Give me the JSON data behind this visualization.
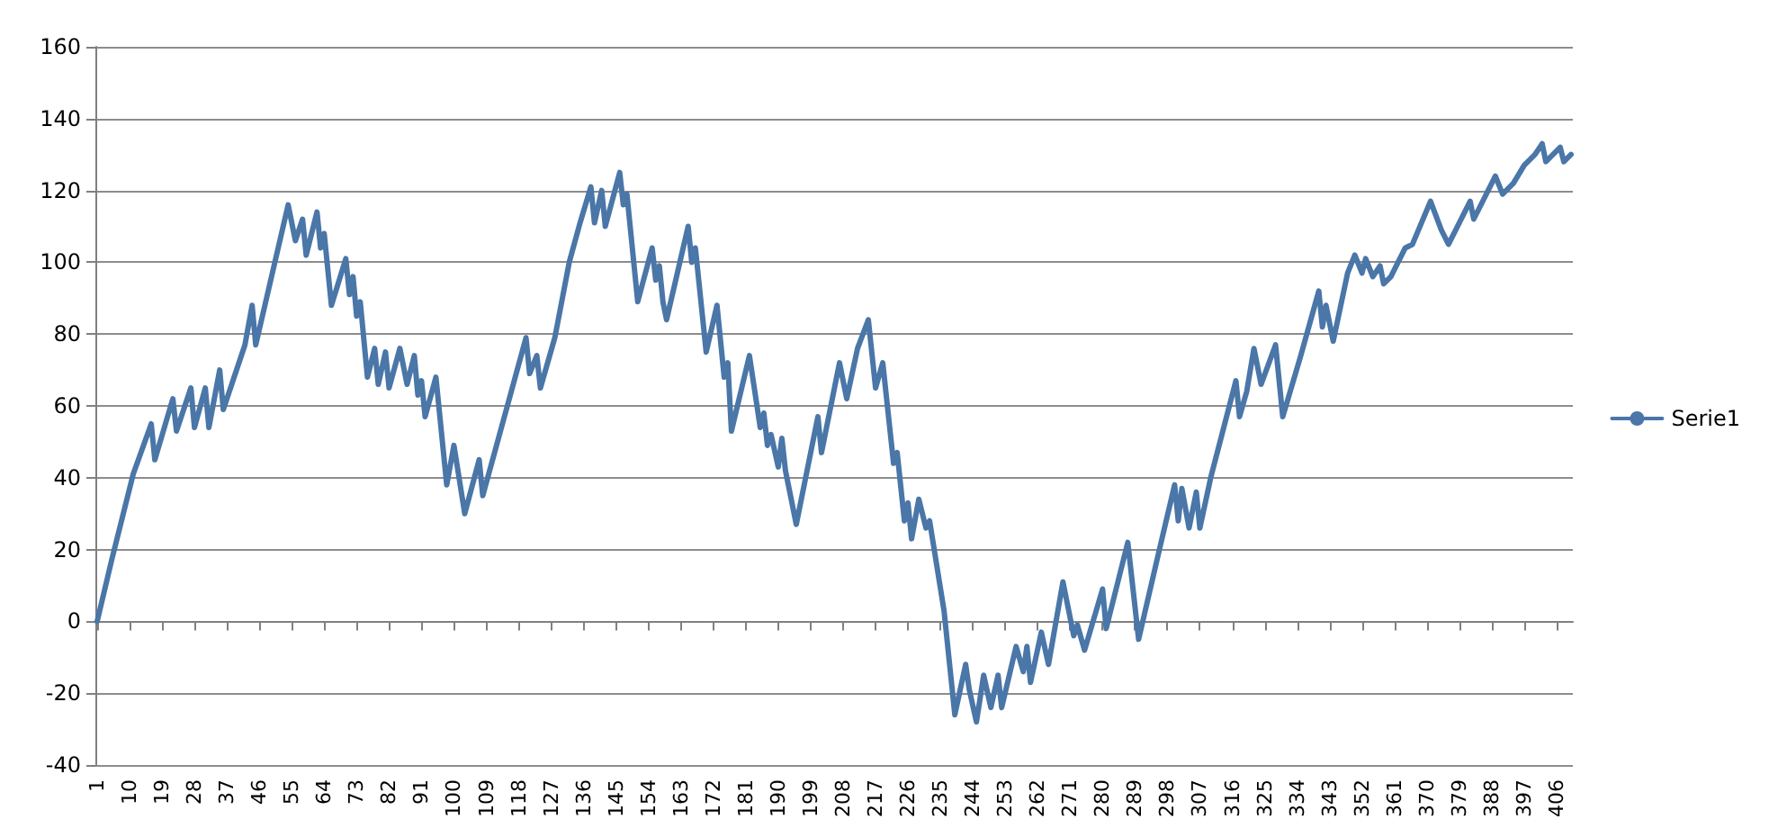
{
  "chart_data": {
    "type": "line",
    "grid": "y",
    "legend": "right",
    "marker": "none",
    "line_style": "solid",
    "xlim": [
      0.5,
      410.5
    ],
    "xticks": [
      1,
      10,
      19,
      28,
      37,
      46,
      55,
      64,
      73,
      82,
      91,
      100,
      109,
      118,
      127,
      136,
      145,
      154,
      163,
      172,
      181,
      190,
      199,
      208,
      217,
      226,
      235,
      244,
      253,
      262,
      271,
      280,
      289,
      298,
      307,
      316,
      325,
      334,
      343,
      352,
      361,
      370,
      379,
      388,
      397,
      406
    ],
    "ylim": [
      -40,
      160
    ],
    "yticks": [
      -40,
      -20,
      0,
      20,
      40,
      60,
      80,
      100,
      120,
      140,
      160
    ],
    "x": [
      1,
      5,
      11,
      16,
      17,
      22,
      23,
      27,
      28,
      31,
      32,
      35,
      36,
      42,
      44,
      45,
      54,
      56,
      58,
      59,
      62,
      63,
      64,
      66,
      70,
      71,
      72,
      73,
      74,
      76,
      78,
      79,
      81,
      82,
      85,
      87,
      89,
      90,
      91,
      92,
      95,
      98,
      100,
      103,
      107,
      108,
      114,
      120,
      121,
      123,
      124,
      128,
      132,
      135,
      138,
      139,
      141,
      142,
      146,
      147,
      148,
      151,
      155,
      156,
      157,
      158,
      159,
      165,
      166,
      167,
      170,
      173,
      175,
      176,
      177,
      182,
      185,
      186,
      187,
      188,
      190,
      191,
      192,
      195,
      201,
      202,
      207,
      209,
      212,
      215,
      217,
      219,
      222,
      223,
      225,
      226,
      227,
      229,
      231,
      232,
      236,
      239,
      242,
      243,
      245,
      247,
      249,
      251,
      252,
      256,
      258,
      259,
      260,
      263,
      265,
      269,
      272,
      273,
      275,
      280,
      281,
      287,
      290,
      296,
      300,
      301,
      302,
      304,
      306,
      307,
      310,
      317,
      318,
      320,
      322,
      324,
      328,
      330,
      335,
      340,
      341,
      342,
      344,
      348,
      350,
      352,
      353,
      355,
      357,
      358,
      360,
      364,
      366,
      371,
      374,
      376,
      382,
      383,
      389,
      391,
      394,
      397,
      400,
      402,
      403,
      405,
      407,
      408,
      410
    ],
    "series": [
      {
        "name": "Serie1",
        "color": "#4a76a8",
        "values": [
          0,
          17,
          41,
          55,
          45,
          62,
          53,
          65,
          54,
          65,
          54,
          70,
          59,
          77,
          88,
          77,
          116,
          106,
          112,
          102,
          114,
          104,
          108,
          88,
          101,
          91,
          96,
          85,
          89,
          68,
          76,
          66,
          75,
          65,
          76,
          66,
          74,
          63,
          67,
          57,
          68,
          38,
          49,
          30,
          45,
          35,
          57,
          79,
          69,
          74,
          65,
          79,
          100,
          111,
          121,
          111,
          120,
          110,
          125,
          116,
          119,
          89,
          104,
          95,
          99,
          89,
          84,
          110,
          100,
          104,
          75,
          88,
          68,
          72,
          53,
          74,
          54,
          58,
          49,
          52,
          43,
          51,
          42,
          27,
          57,
          47,
          72,
          62,
          76,
          84,
          65,
          72,
          44,
          47,
          28,
          33,
          23,
          34,
          26,
          28,
          3,
          -26,
          -12,
          -19,
          -28,
          -15,
          -24,
          -15,
          -24,
          -7,
          -14,
          -7,
          -17,
          -3,
          -12,
          11,
          -4,
          -1,
          -8,
          9,
          -2,
          22,
          -5,
          21,
          38,
          28,
          37,
          26,
          36,
          26,
          40,
          67,
          57,
          64,
          76,
          66,
          77,
          57,
          74,
          92,
          82,
          88,
          78,
          97,
          102,
          97,
          101,
          96,
          99,
          94,
          96,
          104,
          105,
          117,
          109,
          105,
          117,
          112,
          124,
          119,
          122,
          127,
          130,
          133,
          128,
          130,
          132,
          128,
          130
        ]
      }
    ]
  }
}
